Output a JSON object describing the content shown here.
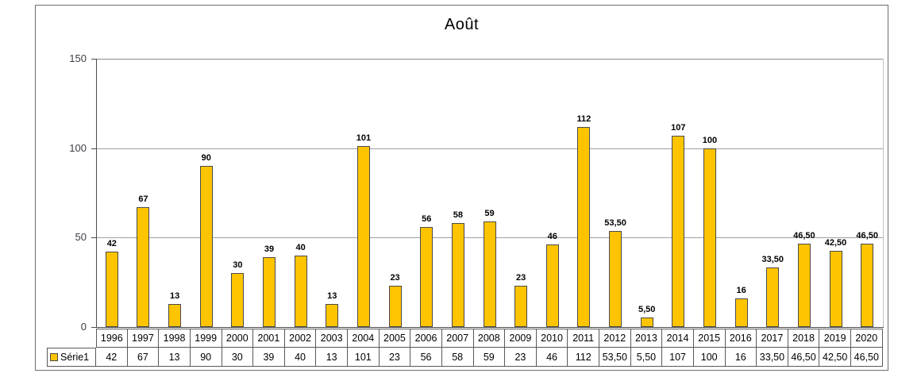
{
  "chart_data": {
    "type": "bar",
    "title": "Août",
    "categories": [
      "1996",
      "1997",
      "1998",
      "1999",
      "2000",
      "2001",
      "2002",
      "2003",
      "2004",
      "2005",
      "2006",
      "2007",
      "2008",
      "2009",
      "2010",
      "2011",
      "2012",
      "2013",
      "2014",
      "2015",
      "2016",
      "2017",
      "2018",
      "2019",
      "2020"
    ],
    "series": [
      {
        "name": "Série1",
        "values": [
          42,
          67,
          13,
          90,
          30,
          39,
          40,
          13,
          101,
          23,
          56,
          58,
          59,
          23,
          46,
          112,
          53.5,
          5.5,
          107,
          100,
          16,
          33.5,
          46.5,
          42.5,
          46.5
        ],
        "labels": [
          "42",
          "67",
          "13",
          "90",
          "30",
          "39",
          "40",
          "13",
          "101",
          "23",
          "56",
          "58",
          "59",
          "23",
          "46",
          "112",
          "53,50",
          "5,50",
          "107",
          "100",
          "16",
          "33,50",
          "46,50",
          "42,50",
          "46,50"
        ]
      }
    ],
    "xlabel": "",
    "ylabel": "",
    "ylim": [
      0,
      150
    ],
    "yticks": [
      0,
      50,
      100,
      150
    ],
    "ytick_labels": [
      "0",
      "50",
      "100",
      "150"
    ],
    "grid": true,
    "data_labels": true,
    "data_table": true,
    "legend_position": "data-table-left",
    "bar_color": "#FFC400",
    "bar_border_color": "#4A4A4A",
    "gridline_color": "#A0A0A0",
    "axis_color": "#4D4D4D"
  }
}
